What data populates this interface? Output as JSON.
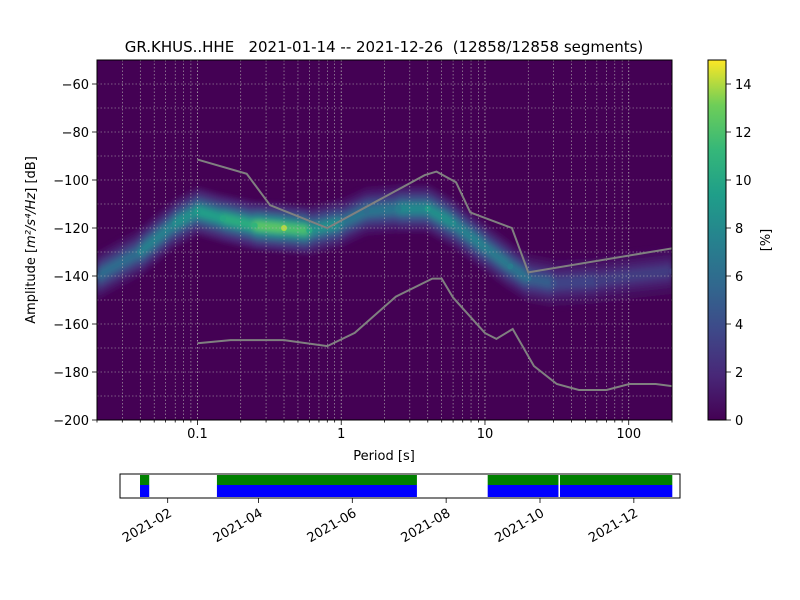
{
  "chart_data": [
    {
      "type": "heatmap",
      "title": "GR.KHUS..HHE   2021-01-14 -- 2021-12-26  (12858/12858 segments)",
      "xlabel": "Period [s]",
      "ylabel_main": "Amplitude [",
      "ylabel_math": "m²/s⁴/Hz",
      "ylabel_end": "] [dB]",
      "xscale": "log",
      "xlim": [
        0.02,
        200
      ],
      "ylim": [
        -200,
        -50
      ],
      "xticks": [
        0.1,
        1,
        10,
        100
      ],
      "xtick_labels": [
        "0.1",
        "1",
        "10",
        "100"
      ],
      "yticks": [
        -60,
        -80,
        -100,
        -120,
        -140,
        -160,
        -180,
        -200
      ],
      "ytick_labels": [
        "−60",
        "−80",
        "−100",
        "−120",
        "−140",
        "−160",
        "−180",
        "−200"
      ],
      "grid": true,
      "colorbar": {
        "label": "[%]",
        "range": [
          0,
          15
        ],
        "ticks": [
          0,
          2,
          4,
          6,
          8,
          10,
          12,
          14
        ],
        "tick_labels": [
          "0",
          "2",
          "4",
          "6",
          "8",
          "10",
          "12",
          "14"
        ],
        "colormap": "viridis"
      },
      "density_ridge": [
        {
          "period": 0.02,
          "db": -140,
          "pct": 5
        },
        {
          "period": 0.04,
          "db": -130,
          "pct": 7
        },
        {
          "period": 0.07,
          "db": -118,
          "pct": 8
        },
        {
          "period": 0.1,
          "db": -113,
          "pct": 9
        },
        {
          "period": 0.15,
          "db": -116,
          "pct": 10
        },
        {
          "period": 0.25,
          "db": -119,
          "pct": 11
        },
        {
          "period": 0.4,
          "db": -120,
          "pct": 14
        },
        {
          "period": 0.6,
          "db": -121,
          "pct": 10
        },
        {
          "period": 1.0,
          "db": -118,
          "pct": 7
        },
        {
          "period": 1.5,
          "db": -113,
          "pct": 6
        },
        {
          "period": 2.5,
          "db": -112,
          "pct": 7
        },
        {
          "period": 4.0,
          "db": -112,
          "pct": 9
        },
        {
          "period": 6.0,
          "db": -118,
          "pct": 8
        },
        {
          "period": 10,
          "db": -128,
          "pct": 7
        },
        {
          "period": 15,
          "db": -136,
          "pct": 7
        },
        {
          "period": 20,
          "db": -141,
          "pct": 6
        },
        {
          "period": 30,
          "db": -143,
          "pct": 4
        },
        {
          "period": 60,
          "db": -142,
          "pct": 3
        },
        {
          "period": 100,
          "db": -140,
          "pct": 3
        },
        {
          "period": 200,
          "db": -138,
          "pct": 3
        }
      ],
      "noise_models": [
        {
          "periods": [
            0.1,
            0.22,
            0.32,
            0.8,
            3.8,
            4.6,
            6.3,
            7.9,
            15.4,
            20,
            354.8
          ],
          "db": [
            -91.5,
            -97.4,
            -110.5,
            -120,
            -98,
            -96.5,
            -101,
            -113.5,
            -120,
            -138.5,
            -126
          ]
        },
        {
          "periods": [
            0.1,
            0.17,
            0.4,
            0.8,
            1.24,
            2.4,
            4.3,
            5,
            6,
            10,
            12,
            15.6,
            21.9,
            31.6,
            45,
            70,
            101,
            154,
            328
          ],
          "db": [
            -168,
            -166.7,
            -166.7,
            -169.2,
            -163.7,
            -148.6,
            -141.1,
            -141.1,
            -149,
            -163.8,
            -166.2,
            -162.1,
            -177.5,
            -185,
            -187.5,
            -187.5,
            -185,
            -185,
            -187.5
          ]
        }
      ]
    },
    {
      "type": "bar",
      "title": "",
      "xlim": [
        "2021-01-01",
        "2021-12-31"
      ],
      "xticks": [
        "2021-02-01",
        "2021-04-01",
        "2021-06-01",
        "2021-08-01",
        "2021-10-01",
        "2021-12-01"
      ],
      "xtick_labels": [
        "2021-02",
        "2021-04",
        "2021-06",
        "2021-08",
        "2021-10",
        "2021-12"
      ],
      "data_spans": [
        [
          "2021-01-14",
          "2021-01-20"
        ],
        [
          "2021-03-05",
          "2021-07-13"
        ],
        [
          "2021-08-28",
          "2021-10-13"
        ],
        [
          "2021-10-14",
          "2021-12-26"
        ]
      ],
      "colors": {
        "data": "#0000ff",
        "psd": "#008000"
      }
    }
  ],
  "colors": {
    "noise_model": "#808080",
    "grid": "#b4b4b4",
    "background": "#440154"
  }
}
